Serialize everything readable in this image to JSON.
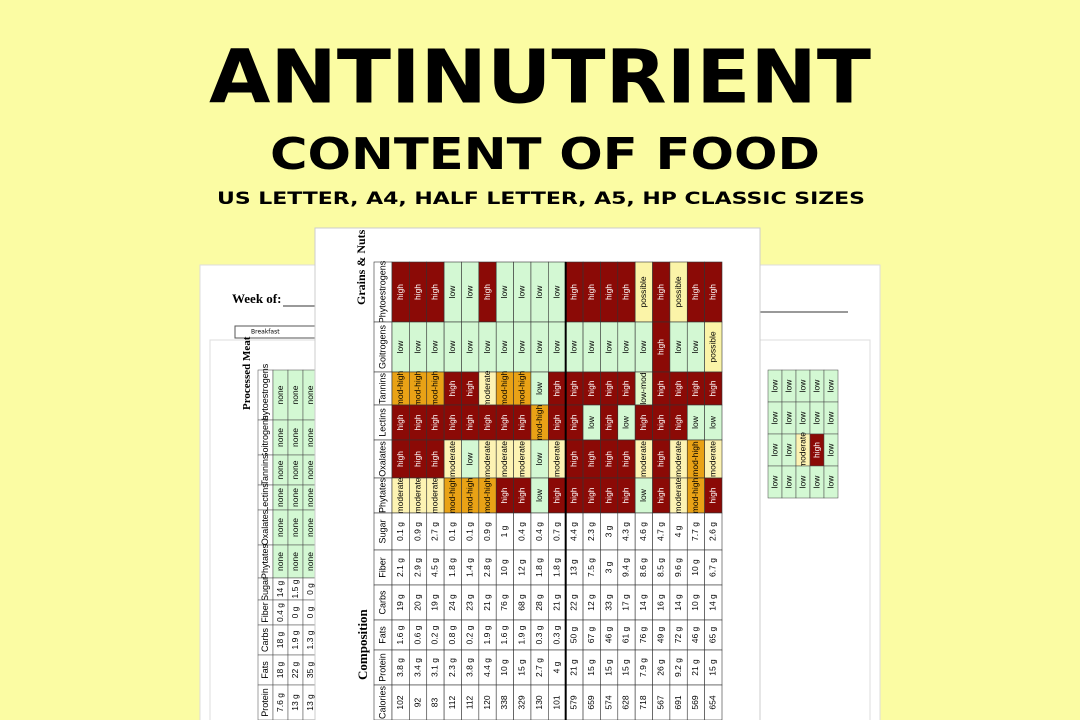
{
  "header": {
    "title": "ANTINUTRIENT",
    "subtitle": "CONTENT OF FOOD",
    "sizes": "US LETTER, A4, HALF LETTER, A5, HP CLASSIC SIZES"
  },
  "planner_page": {
    "heading": "Week of:",
    "row": "Breakfast"
  },
  "meat_page": {
    "section": "Processed Meat",
    "columns": [
      "Phytoestrogens",
      "Goitrogens",
      "Tannins",
      "Lectins",
      "Oxalates",
      "Phytates",
      "Sugar",
      "Fiber",
      "Carbs",
      "Fats",
      "Protein"
    ],
    "rows": [
      [
        "none",
        "none",
        "none",
        "none",
        "none",
        "none",
        "14 g",
        "0.4 g",
        "18 g",
        "18 g",
        "7.6 g"
      ],
      [
        "none",
        "none",
        "none",
        "none",
        "none",
        "none",
        "1.5 g",
        "0 g",
        "1.9 g",
        "22 g",
        "13 g"
      ],
      [
        "none",
        "none",
        "none",
        "none",
        "none",
        "none",
        "0 g",
        "0 g",
        "1.3 g",
        "35 g",
        "13 g"
      ]
    ]
  },
  "right_page": {
    "rows": [
      [
        "low",
        "low",
        "low",
        "low",
        "low"
      ],
      [
        "low",
        "low",
        "low",
        "low",
        "low"
      ],
      [
        "low",
        "low",
        "moderate",
        "high",
        "low"
      ],
      [
        "low",
        "low",
        "low",
        "low",
        "low"
      ]
    ]
  },
  "table": {
    "section": "Grains & Nuts",
    "group": "Composition",
    "level_colors": {
      "high": "#8b0a06",
      "mod-high": "#e9a216",
      "moderate": "#fdf3b3",
      "low-mod": "#dff7c9",
      "low": "#d3f8d3",
      "possible": "#fbf4a8",
      "none": "#d3f8d3"
    },
    "rows": [
      {
        "label": "Phytoestrogens",
        "values": [
          "high",
          "high",
          "high",
          "low",
          "low",
          "high",
          "low",
          "low",
          "low",
          "low",
          "high",
          "high",
          "high",
          "high",
          "possible",
          "high",
          "possible",
          "high",
          "high"
        ]
      },
      {
        "label": "Goitrogens",
        "values": [
          "low",
          "low",
          "low",
          "low",
          "low",
          "low",
          "low",
          "low",
          "low",
          "low",
          "low",
          "low",
          "low",
          "low",
          "low",
          "high",
          "low",
          "low",
          "possible"
        ]
      },
      {
        "label": "Tannins",
        "values": [
          "mod-high",
          "mod-high",
          "mod-high",
          "high",
          "high",
          "moderate",
          "mod-high",
          "mod-high",
          "low",
          "high",
          "high",
          "high",
          "high",
          "high",
          "low-mod",
          "high",
          "high",
          "high",
          "high"
        ]
      },
      {
        "label": "Lectins",
        "values": [
          "high",
          "high",
          "high",
          "high",
          "high",
          "high",
          "high",
          "high",
          "mod-high",
          "high",
          "high",
          "low",
          "high",
          "low",
          "high",
          "high",
          "high",
          "low",
          "low"
        ]
      },
      {
        "label": "Oxalates",
        "values": [
          "high",
          "high",
          "high",
          "moderate",
          "low",
          "moderate",
          "moderate",
          "moderate",
          "low",
          "moderate",
          "high",
          "high",
          "high",
          "high",
          "moderate",
          "high",
          "moderate",
          "mod-high",
          "moderate"
        ]
      },
      {
        "label": "Phytates",
        "values": [
          "moderate",
          "moderate",
          "moderate",
          "mod-high",
          "mod-high",
          "mod-high",
          "high",
          "high",
          "low",
          "high",
          "high",
          "high",
          "high",
          "high",
          "low",
          "high",
          "moderate",
          "mod-high",
          "high"
        ]
      },
      {
        "label": "Sugar",
        "values": [
          "0.1 g",
          "0.9 g",
          "2.7 g",
          "0.1 g",
          "0.1 g",
          "0.9 g",
          "1 g",
          "0.4 g",
          "0.4 g",
          "0.7 g",
          "4.4 g",
          "2.3 g",
          "3 g",
          "4.3 g",
          "4.6 g",
          "4.7 g",
          "4 g",
          "7.7 g",
          "2.6 g"
        ]
      },
      {
        "label": "Fiber",
        "values": [
          "2.1 g",
          "2.9 g",
          "4.5 g",
          "1.8 g",
          "1.4 g",
          "2.8 g",
          "10 g",
          "12 g",
          "1.8 g",
          "1.8 g",
          "13 g",
          "7.5 g",
          "3 g",
          "9.4 g",
          "8.6 g",
          "8.5 g",
          "9.6 g",
          "10 g",
          "6.7 g"
        ]
      },
      {
        "label": "Carbs",
        "values": [
          "19 g",
          "20 g",
          "19 g",
          "24 g",
          "23 g",
          "21 g",
          "76 g",
          "68 g",
          "28 g",
          "21 g",
          "22 g",
          "12 g",
          "33 g",
          "17 g",
          "14 g",
          "16 g",
          "14 g",
          "10 g",
          "14 g"
        ]
      },
      {
        "label": "Fats",
        "values": [
          "1.6 g",
          "0.6 g",
          "0.2 g",
          "0.8 g",
          "0.2 g",
          "1.9 g",
          "1.6 g",
          "1.9 g",
          "0.3 g",
          "0.3 g",
          "50 g",
          "67 g",
          "46 g",
          "61 g",
          "76 g",
          "49 g",
          "72 g",
          "46 g",
          "65 g"
        ]
      },
      {
        "label": "Protein",
        "values": [
          "3.8 g",
          "3.4 g",
          "3.1 g",
          "2.3 g",
          "3.8 g",
          "4.4 g",
          "10 g",
          "15 g",
          "2.7 g",
          "4 g",
          "21 g",
          "15 g",
          "15 g",
          "15 g",
          "7.9 g",
          "26 g",
          "9.2 g",
          "21 g",
          "15 g"
        ]
      },
      {
        "label": "Calories",
        "values": [
          "102",
          "92",
          "83",
          "112",
          "112",
          "120",
          "338",
          "329",
          "130",
          "101",
          "579",
          "659",
          "574",
          "628",
          "718",
          "567",
          "691",
          "569",
          "654"
        ]
      }
    ]
  }
}
